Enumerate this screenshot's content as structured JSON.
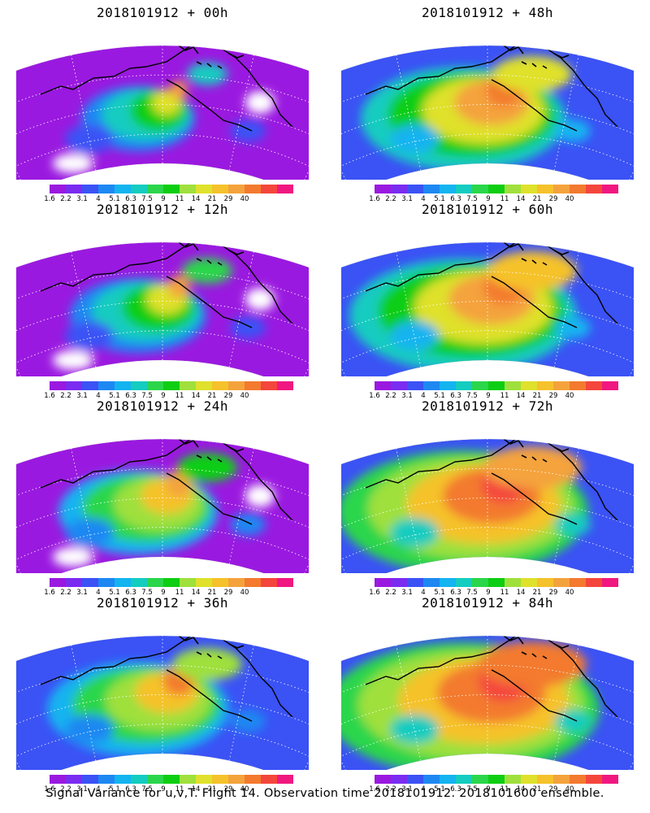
{
  "panels": [
    {
      "title": "2018101912 + 00h",
      "intensity": 0
    },
    {
      "title": "2018101912 + 48h",
      "intensity": 4
    },
    {
      "title": "2018101912 + 12h",
      "intensity": 1
    },
    {
      "title": "2018101912 + 60h",
      "intensity": 5
    },
    {
      "title": "2018101912 + 24h",
      "intensity": 2
    },
    {
      "title": "2018101912 + 72h",
      "intensity": 6
    },
    {
      "title": "2018101912 + 36h",
      "intensity": 3
    },
    {
      "title": "2018101912 + 84h",
      "intensity": 7
    }
  ],
  "colorbar": {
    "labels": [
      "1.6",
      "2.2",
      "3.1",
      "4",
      "5.1",
      "6.3",
      "7.5",
      "9",
      "11",
      "14",
      "21",
      "29",
      "40"
    ],
    "colors": [
      "#9a19e0",
      "#7a2cf0",
      "#3b52f5",
      "#1e88f2",
      "#13b4f0",
      "#14ccc0",
      "#2bd64b",
      "#0ece13",
      "#9fe03c",
      "#dfe12c",
      "#f5c22b",
      "#f4a33c",
      "#f37a2f",
      "#f4463c",
      "#f01880"
    ]
  },
  "footer": "Signal Variance for u,v,T. Flight 14. Observation time 2018101912. 2018101600 ensemble."
}
